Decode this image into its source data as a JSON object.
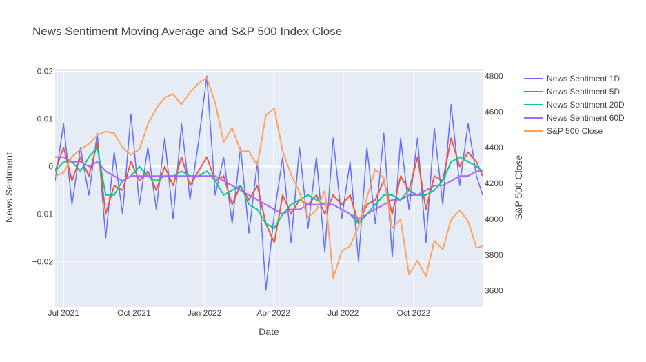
{
  "chart_data": {
    "type": "line",
    "title": "News Sentiment Moving Average and S&P 500 Index Close",
    "xlabel": "Date",
    "ylabel": "News Sentiment",
    "y2label": "S&P 500 Close",
    "x_range": [
      "2021-06-20",
      "2022-12-30"
    ],
    "ylim": [
      -0.0295,
      0.0205
    ],
    "y2lim": [
      3510,
      4840
    ],
    "x_ticks": [
      {
        "date": "2021-07-01",
        "label": "Jul 2021"
      },
      {
        "date": "2021-10-01",
        "label": "Oct 2021"
      },
      {
        "date": "2022-01-01",
        "label": "Jan 2022"
      },
      {
        "date": "2022-04-01",
        "label": "Apr 2022"
      },
      {
        "date": "2022-07-01",
        "label": "Jul 2022"
      },
      {
        "date": "2022-10-01",
        "label": "Oct 2022"
      }
    ],
    "y_ticks": [
      {
        "value": 0.02,
        "label": "0.02"
      },
      {
        "value": 0.01,
        "label": "0.01"
      },
      {
        "value": 0,
        "label": "0"
      },
      {
        "value": -0.01,
        "label": "−0.01"
      },
      {
        "value": -0.02,
        "label": "−0.02"
      }
    ],
    "y2_ticks": [
      {
        "value": 3600,
        "label": "3600"
      },
      {
        "value": 3800,
        "label": "3800"
      },
      {
        "value": 4000,
        "label": "4000"
      },
      {
        "value": 4200,
        "label": "4200"
      },
      {
        "value": 4400,
        "label": "4400"
      },
      {
        "value": 4600,
        "label": "4600"
      },
      {
        "value": 4800,
        "label": "4800"
      }
    ],
    "grid": true,
    "legend_position": "right",
    "series": [
      {
        "name": "News Sentiment 1D",
        "color": "#636efa",
        "axis": "y",
        "width": 1.5,
        "x": [
          "2021-06-20",
          "2021-07-01",
          "2021-07-12",
          "2021-07-23",
          "2021-08-03",
          "2021-08-14",
          "2021-08-25",
          "2021-09-05",
          "2021-09-16",
          "2021-09-27",
          "2021-10-08",
          "2021-10-19",
          "2021-10-30",
          "2021-11-10",
          "2021-11-21",
          "2021-12-02",
          "2021-12-13",
          "2021-12-24",
          "2022-01-04",
          "2022-01-15",
          "2022-01-26",
          "2022-02-06",
          "2022-02-17",
          "2022-02-28",
          "2022-03-11",
          "2022-03-22",
          "2022-04-02",
          "2022-04-13",
          "2022-04-24",
          "2022-05-05",
          "2022-05-16",
          "2022-05-27",
          "2022-06-07",
          "2022-06-18",
          "2022-06-29",
          "2022-07-10",
          "2022-07-21",
          "2022-08-01",
          "2022-08-12",
          "2022-08-23",
          "2022-09-03",
          "2022-09-14",
          "2022-09-25",
          "2022-10-06",
          "2022-10-17",
          "2022-10-28",
          "2022-11-08",
          "2022-11-19",
          "2022-11-30",
          "2022-12-11",
          "2022-12-22",
          "2022-12-30"
        ],
        "y": [
          -0.003,
          0.009,
          -0.008,
          0.004,
          -0.006,
          0.007,
          -0.015,
          0.003,
          -0.01,
          0.011,
          -0.008,
          0.004,
          -0.009,
          0.006,
          -0.011,
          0.009,
          -0.007,
          0.005,
          0.019,
          -0.006,
          0.002,
          -0.012,
          0.004,
          -0.014,
          0.001,
          -0.026,
          -0.01,
          0.002,
          -0.016,
          0.004,
          -0.013,
          0.002,
          -0.018,
          0.006,
          -0.011,
          0.001,
          -0.02,
          0.004,
          -0.012,
          0.007,
          -0.019,
          0.006,
          -0.009,
          0.006,
          -0.016,
          0.008,
          -0.008,
          0.013,
          -0.004,
          0.009,
          -0.002,
          -0.006
        ]
      },
      {
        "name": "News Sentiment 5D",
        "color": "#ef553b",
        "axis": "y",
        "width": 2,
        "x": [
          "2021-06-20",
          "2021-07-01",
          "2021-07-12",
          "2021-07-23",
          "2021-08-03",
          "2021-08-14",
          "2021-08-25",
          "2021-09-05",
          "2021-09-16",
          "2021-09-27",
          "2021-10-08",
          "2021-10-19",
          "2021-10-30",
          "2021-11-10",
          "2021-11-21",
          "2021-12-02",
          "2021-12-13",
          "2021-12-24",
          "2022-01-04",
          "2022-01-15",
          "2022-01-26",
          "2022-02-06",
          "2022-02-17",
          "2022-02-28",
          "2022-03-11",
          "2022-03-22",
          "2022-04-02",
          "2022-04-13",
          "2022-04-24",
          "2022-05-05",
          "2022-05-16",
          "2022-05-27",
          "2022-06-07",
          "2022-06-18",
          "2022-06-29",
          "2022-07-10",
          "2022-07-21",
          "2022-08-01",
          "2022-08-12",
          "2022-08-23",
          "2022-09-03",
          "2022-09-14",
          "2022-09-25",
          "2022-10-06",
          "2022-10-17",
          "2022-10-28",
          "2022-11-08",
          "2022-11-19",
          "2022-11-30",
          "2022-12-11",
          "2022-12-22",
          "2022-12-30"
        ],
        "y": [
          -0.001,
          0.004,
          -0.003,
          0.002,
          -0.002,
          0.005,
          -0.01,
          -0.004,
          -0.005,
          0.001,
          -0.003,
          -0.001,
          -0.005,
          0,
          -0.004,
          0.002,
          -0.004,
          -0.001,
          0.002,
          -0.003,
          -0.002,
          -0.008,
          -0.004,
          -0.007,
          -0.004,
          -0.012,
          -0.016,
          -0.006,
          -0.01,
          -0.007,
          -0.008,
          -0.006,
          -0.01,
          -0.006,
          -0.008,
          -0.006,
          -0.012,
          -0.008,
          -0.007,
          -0.003,
          -0.01,
          -0.002,
          -0.005,
          0.002,
          -0.009,
          -0.002,
          -0.003,
          0.006,
          0,
          0.003,
          0.001,
          -0.002
        ]
      },
      {
        "name": "News Sentiment 20D",
        "color": "#00cc96",
        "axis": "y",
        "width": 2,
        "x": [
          "2021-06-20",
          "2021-07-01",
          "2021-07-12",
          "2021-07-23",
          "2021-08-03",
          "2021-08-14",
          "2021-08-25",
          "2021-09-05",
          "2021-09-16",
          "2021-09-27",
          "2021-10-08",
          "2021-10-19",
          "2021-10-30",
          "2021-11-10",
          "2021-11-21",
          "2021-12-02",
          "2021-12-13",
          "2021-12-24",
          "2022-01-04",
          "2022-01-15",
          "2022-01-26",
          "2022-02-06",
          "2022-02-17",
          "2022-02-28",
          "2022-03-11",
          "2022-03-22",
          "2022-04-02",
          "2022-04-13",
          "2022-04-24",
          "2022-05-05",
          "2022-05-16",
          "2022-05-27",
          "2022-06-07",
          "2022-06-18",
          "2022-06-29",
          "2022-07-10",
          "2022-07-21",
          "2022-08-01",
          "2022-08-12",
          "2022-08-23",
          "2022-09-03",
          "2022-09-14",
          "2022-09-25",
          "2022-10-06",
          "2022-10-17",
          "2022-10-28",
          "2022-11-08",
          "2022-11-19",
          "2022-11-30",
          "2022-12-11",
          "2022-12-22",
          "2022-12-30"
        ],
        "y": [
          -0.001,
          0.001,
          0.001,
          -0.001,
          0.002,
          0.004,
          -0.006,
          -0.006,
          -0.003,
          -0.002,
          0,
          -0.002,
          -0.003,
          -0.002,
          -0.002,
          -0.001,
          -0.002,
          -0.002,
          -0.001,
          -0.003,
          -0.006,
          -0.005,
          -0.004,
          -0.008,
          -0.009,
          -0.012,
          -0.013,
          -0.01,
          -0.008,
          -0.007,
          -0.006,
          -0.007,
          -0.008,
          -0.008,
          -0.009,
          -0.01,
          -0.012,
          -0.01,
          -0.008,
          -0.006,
          -0.006,
          -0.007,
          -0.005,
          -0.006,
          -0.006,
          -0.005,
          -0.003,
          0.001,
          0.002,
          0.001,
          0,
          -0.001
        ]
      },
      {
        "name": "News Sentiment 60D",
        "color": "#ab63fa",
        "axis": "y",
        "width": 2,
        "x": [
          "2021-06-20",
          "2021-07-01",
          "2021-07-12",
          "2021-07-23",
          "2021-08-03",
          "2021-08-14",
          "2021-08-25",
          "2021-09-05",
          "2021-09-16",
          "2021-09-27",
          "2021-10-08",
          "2021-10-19",
          "2021-10-30",
          "2021-11-10",
          "2021-11-21",
          "2021-12-02",
          "2021-12-13",
          "2021-12-24",
          "2022-01-04",
          "2022-01-15",
          "2022-01-26",
          "2022-02-06",
          "2022-02-17",
          "2022-02-28",
          "2022-03-11",
          "2022-03-22",
          "2022-04-02",
          "2022-04-13",
          "2022-04-24",
          "2022-05-05",
          "2022-05-16",
          "2022-05-27",
          "2022-06-07",
          "2022-06-18",
          "2022-06-29",
          "2022-07-10",
          "2022-07-21",
          "2022-08-01",
          "2022-08-12",
          "2022-08-23",
          "2022-09-03",
          "2022-09-14",
          "2022-09-25",
          "2022-10-06",
          "2022-10-17",
          "2022-10-28",
          "2022-11-08",
          "2022-11-19",
          "2022-11-30",
          "2022-12-11",
          "2022-12-22",
          "2022-12-30"
        ],
        "y": [
          0.002,
          0.002,
          0.001,
          0.001,
          0,
          0.001,
          -0.001,
          -0.002,
          -0.003,
          -0.002,
          -0.002,
          -0.002,
          -0.002,
          -0.002,
          -0.002,
          -0.002,
          -0.002,
          -0.002,
          -0.002,
          -0.002,
          -0.003,
          -0.004,
          -0.005,
          -0.006,
          -0.007,
          -0.008,
          -0.009,
          -0.01,
          -0.009,
          -0.009,
          -0.008,
          -0.008,
          -0.008,
          -0.008,
          -0.009,
          -0.01,
          -0.011,
          -0.01,
          -0.009,
          -0.008,
          -0.007,
          -0.007,
          -0.006,
          -0.006,
          -0.005,
          -0.004,
          -0.004,
          -0.003,
          -0.002,
          -0.002,
          -0.001,
          -0.001
        ]
      },
      {
        "name": "S&P 500 Close",
        "color": "#ffa15a",
        "axis": "y2",
        "width": 2,
        "x": [
          "2021-06-20",
          "2021-07-01",
          "2021-07-12",
          "2021-07-23",
          "2021-08-03",
          "2021-08-14",
          "2021-08-25",
          "2021-09-05",
          "2021-09-16",
          "2021-09-27",
          "2021-10-08",
          "2021-10-19",
          "2021-10-30",
          "2021-11-10",
          "2021-11-21",
          "2021-12-02",
          "2021-12-13",
          "2021-12-24",
          "2022-01-04",
          "2022-01-15",
          "2022-01-26",
          "2022-02-06",
          "2022-02-17",
          "2022-02-28",
          "2022-03-11",
          "2022-03-22",
          "2022-04-02",
          "2022-04-13",
          "2022-04-24",
          "2022-05-05",
          "2022-05-16",
          "2022-05-27",
          "2022-06-07",
          "2022-06-18",
          "2022-06-29",
          "2022-07-10",
          "2022-07-21",
          "2022-08-01",
          "2022-08-12",
          "2022-08-23",
          "2022-09-03",
          "2022-09-14",
          "2022-09-25",
          "2022-10-06",
          "2022-10-17",
          "2022-10-28",
          "2022-11-08",
          "2022-11-19",
          "2022-11-30",
          "2022-12-11",
          "2022-12-22",
          "2022-12-30"
        ],
        "y": [
          4240,
          4260,
          4350,
          4390,
          4420,
          4470,
          4490,
          4480,
          4400,
          4360,
          4390,
          4530,
          4620,
          4680,
          4700,
          4640,
          4710,
          4760,
          4790,
          4650,
          4430,
          4510,
          4380,
          4380,
          4300,
          4580,
          4620,
          4380,
          4250,
          4150,
          4010,
          4050,
          4160,
          3670,
          3820,
          3850,
          3960,
          4120,
          4280,
          4230,
          3950,
          4000,
          3690,
          3770,
          3680,
          3880,
          3830,
          4000,
          4050,
          3990,
          3840,
          3850
        ]
      }
    ]
  }
}
